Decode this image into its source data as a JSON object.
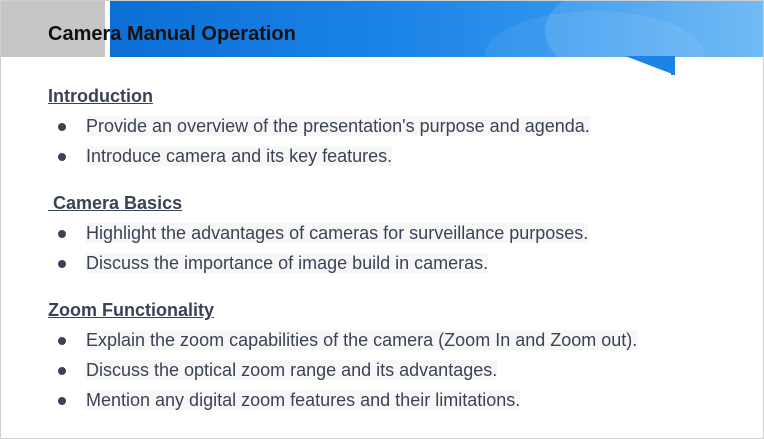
{
  "slide": {
    "title": "Camera Manual Operation",
    "sections": [
      {
        "heading": "Introduction",
        "bullets": [
          "Provide an overview of the presentation's purpose and agenda.",
          "Introduce camera and its key features."
        ]
      },
      {
        "heading": " Camera Basics",
        "bullets": [
          "Highlight the advantages of cameras for surveillance purposes.",
          "Discuss the importance of image build in cameras."
        ]
      },
      {
        "heading": "Zoom Functionality",
        "bullets": [
          "Explain the zoom capabilities of the camera (Zoom In and Zoom out).",
          "Discuss the optical zoom range and its advantages.",
          "Mention any digital zoom features and their limitations."
        ]
      }
    ]
  },
  "colors": {
    "header_blue": "#1a82e6",
    "header_gray": "#c6c6c6",
    "text": "#3a4356",
    "title": "#111111"
  }
}
